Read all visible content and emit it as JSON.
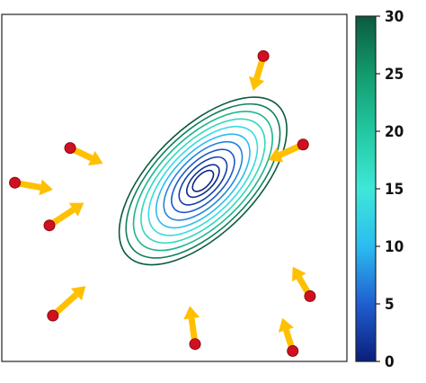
{
  "chart_data": {
    "type": "contour",
    "title": "",
    "xlabel": "",
    "ylabel": "",
    "colorbar": {
      "min": 0,
      "max": 30,
      "ticks": [
        "0",
        "5",
        "10",
        "15",
        "20",
        "25",
        "30"
      ],
      "colormap_stops": [
        "#0a1f7a",
        "#1f5fd0",
        "#2bbcf0",
        "#3ee8d8",
        "#22c8a0",
        "#139a6e",
        "#0b5a3e"
      ]
    },
    "minimum": {
      "u": 0.583,
      "v": 0.48
    },
    "contour_levels": [
      0.5,
      1.2,
      2.6,
      4.5,
      7,
      10,
      13.5,
      17.5,
      22,
      27,
      32
    ],
    "points": [
      {
        "u": 0.758,
        "v": 0.12,
        "du": -0.03,
        "dv": 0.1
      },
      {
        "u": 0.198,
        "v": 0.385,
        "du": 0.095,
        "dv": 0.045
      },
      {
        "u": 0.038,
        "v": 0.485,
        "du": 0.11,
        "dv": 0.02
      },
      {
        "u": 0.138,
        "v": 0.608,
        "du": 0.1,
        "dv": -0.065
      },
      {
        "u": 0.873,
        "v": 0.375,
        "du": -0.1,
        "dv": 0.045
      },
      {
        "u": 0.148,
        "v": 0.868,
        "du": 0.095,
        "dv": -0.085
      },
      {
        "u": 0.893,
        "v": 0.812,
        "du": -0.05,
        "dv": -0.085
      },
      {
        "u": 0.56,
        "v": 0.95,
        "du": -0.015,
        "dv": -0.11
      },
      {
        "u": 0.843,
        "v": 0.97,
        "du": -0.03,
        "dv": -0.095
      }
    ],
    "colors": {
      "arrow": "#ffc000",
      "point": "#d01020",
      "point_edge": "#8a0a10"
    }
  }
}
